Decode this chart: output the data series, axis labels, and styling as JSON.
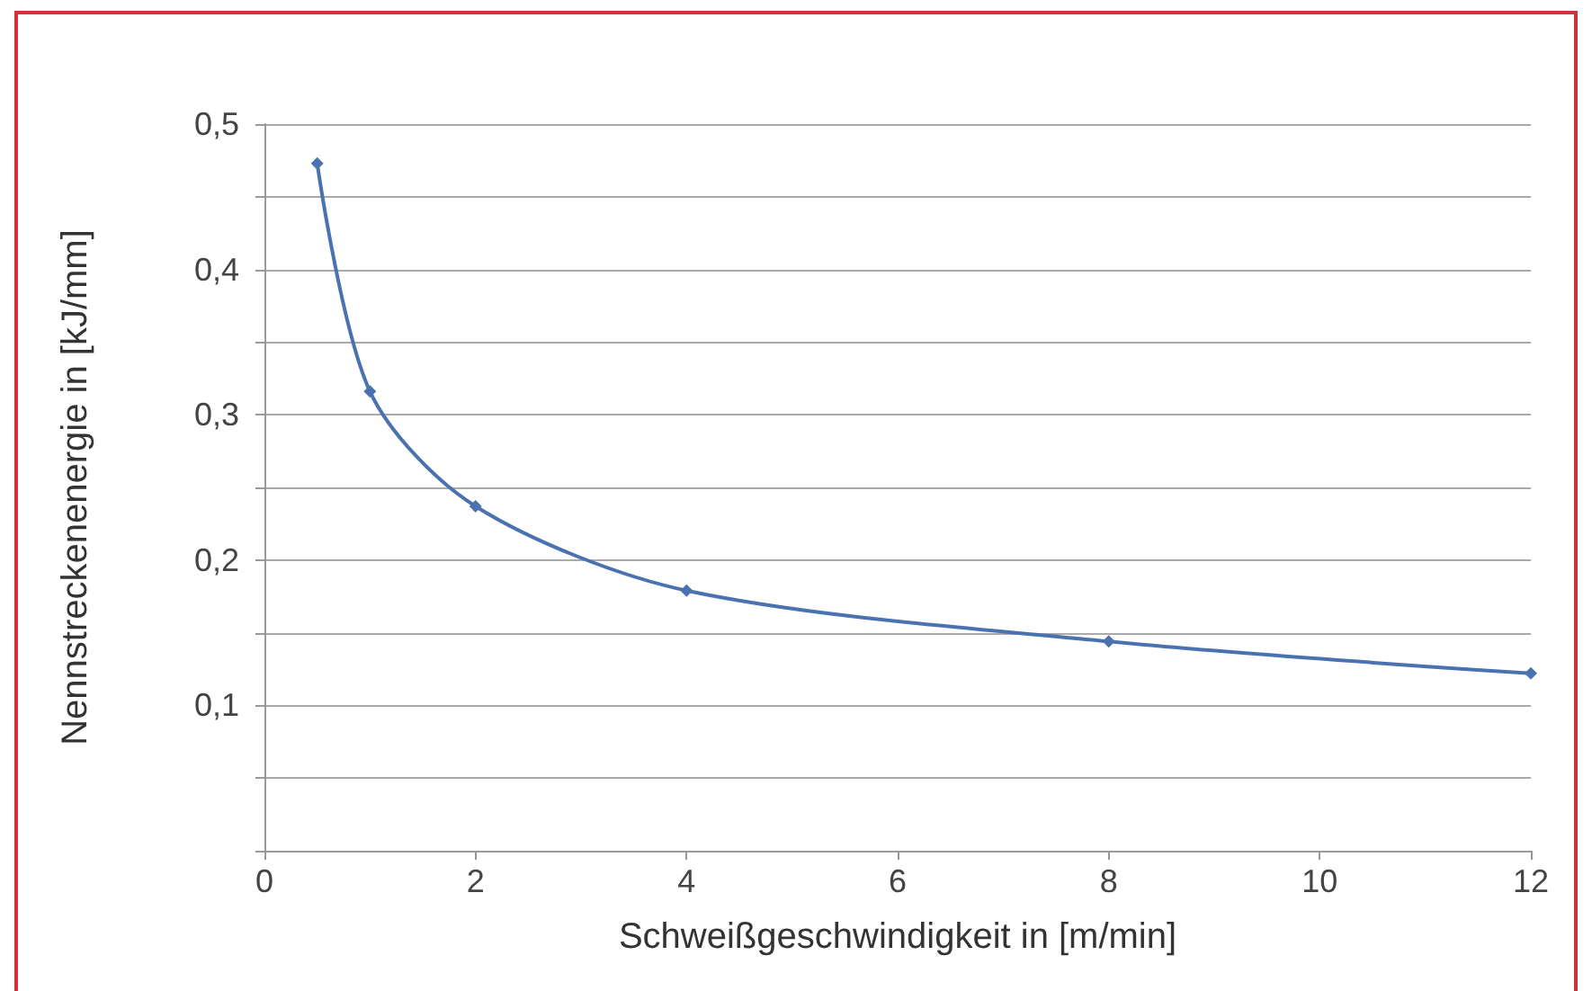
{
  "chart_data": {
    "type": "line",
    "xlabel": "Schweißgeschwindigkeit in [m/min]",
    "ylabel": "Nennstreckenenergie in [kJ/mm]",
    "x": [
      0.5,
      1,
      2,
      4,
      8,
      12
    ],
    "series": [
      {
        "color": "#4a72b0",
        "values": [
          0.473,
          0.316,
          0.237,
          0.179,
          0.144,
          0.122
        ]
      }
    ],
    "xlim": [
      0,
      12
    ],
    "xticks": [
      0,
      2,
      4,
      6,
      8,
      10,
      12
    ],
    "ylim": [
      0,
      0.5
    ],
    "yticks": [
      {
        "value": 0,
        "label": null
      },
      {
        "value": 0.05,
        "label": null
      },
      {
        "value": 0.1,
        "label": "0,1"
      },
      {
        "value": 0.15,
        "label": null
      },
      {
        "value": 0.2,
        "label": "0,2"
      },
      {
        "value": 0.25,
        "label": null
      },
      {
        "value": 0.3,
        "label": "0,3"
      },
      {
        "value": 0.35,
        "label": null
      },
      {
        "value": 0.4,
        "label": "0,4"
      },
      {
        "value": 0.45,
        "label": null
      },
      {
        "value": 0.5,
        "label": "0,5"
      }
    ],
    "grid": "y",
    "marker": "diamond",
    "line_style": "solid"
  }
}
